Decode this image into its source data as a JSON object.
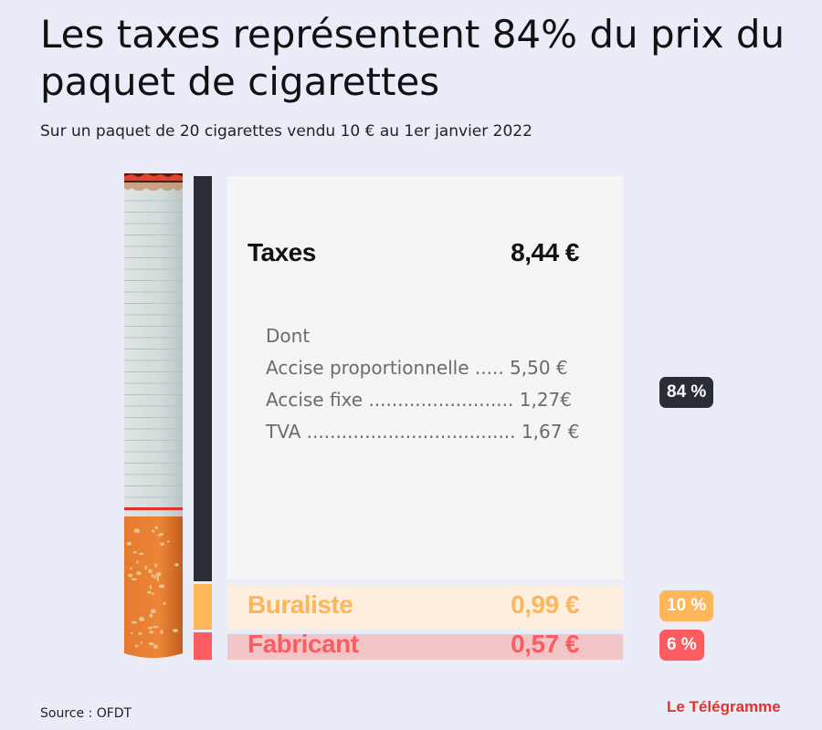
{
  "header": {
    "title": "Les taxes représentent 84% du prix du paquet de cigarettes",
    "subtitle": "Sur un paquet de 20 cigarettes vendu 10 € au 1er janvier 2022"
  },
  "chart_data": {
    "type": "bar",
    "title": "Les taxes représentent 84% du prix du paquet de cigarettes",
    "total": 10,
    "unit": "€",
    "categories": [
      "Taxes",
      "Buraliste",
      "Fabricant"
    ],
    "values": [
      8.44,
      0.99,
      0.57
    ],
    "amount_labels": [
      "8,44 €",
      "0,99 €",
      "0,57 €"
    ],
    "percent_labels": [
      "84 %",
      "10 %",
      "6 %"
    ],
    "colors": [
      "#2a2d35",
      "#fdb65a",
      "#fc5c5f"
    ],
    "panel_colors": [
      "#f5f5f5",
      "#fdeedd",
      "#f2c6c8"
    ],
    "tax_breakdown": {
      "heading": "Dont",
      "items": [
        {
          "label": "Accise proportionnelle ..... 5,50 €",
          "value": 5.5
        },
        {
          "label": "Accise fixe ......................... 1,27€",
          "value": 1.27
        },
        {
          "label": "TVA .................................... 1,67 €",
          "value": 1.67
        }
      ]
    }
  },
  "footer": {
    "source": "Source : OFDT",
    "logo": "Le Télégramme"
  }
}
